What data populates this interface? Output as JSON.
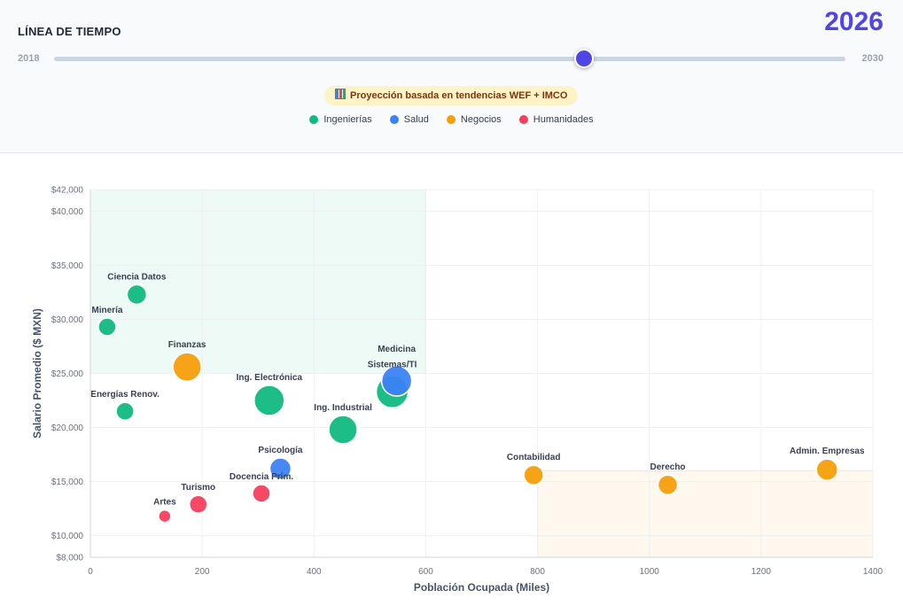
{
  "timeline": {
    "title": "LÍNEA DE TIEMPO",
    "year": "2026",
    "min_label": "2018",
    "max_label": "2030",
    "current_fraction": 0.667
  },
  "badge": {
    "icon": "bar-chart-icon",
    "text": "Proyección basada en tendencias WEF + IMCO"
  },
  "legend": [
    {
      "label": "Ingenierías",
      "color": "#10b981"
    },
    {
      "label": "Salud",
      "color": "#3b82f6"
    },
    {
      "label": "Negocios",
      "color": "#f59e0b"
    },
    {
      "label": "Humanidades",
      "color": "#f43f5e"
    }
  ],
  "chart_data": {
    "type": "scatter",
    "xlabel": "Población Ocupada (Miles)",
    "ylabel": "Salario Promedio ($ MXN)",
    "xlim": [
      0,
      1400
    ],
    "ylim": [
      8000,
      42000
    ],
    "x_ticks": [
      0,
      200,
      400,
      600,
      800,
      1000,
      1200,
      1400
    ],
    "y_ticks": [
      {
        "value": 8000,
        "label": "$8,000"
      },
      {
        "value": 10000,
        "label": "$10,000"
      },
      {
        "value": 15000,
        "label": "$15,000"
      },
      {
        "value": 20000,
        "label": "$20,000"
      },
      {
        "value": 25000,
        "label": "$25,000"
      },
      {
        "value": 30000,
        "label": "$30,000"
      },
      {
        "value": 35000,
        "label": "$35,000"
      },
      {
        "value": 40000,
        "label": "$40,000"
      },
      {
        "value": 42000,
        "label": "$42,000"
      }
    ],
    "grid": true,
    "highlight_regions": [
      {
        "x": [
          0,
          600
        ],
        "y": [
          25000,
          42000
        ],
        "color": "#10b981"
      },
      {
        "x": [
          800,
          1400
        ],
        "y": [
          8000,
          16000
        ],
        "color": "#f59e0b"
      }
    ],
    "points": [
      {
        "label": "Minería",
        "x": 30,
        "y": 29300,
        "size": 10,
        "group": "Ingenierías"
      },
      {
        "label": "Ciencia Datos",
        "x": 83,
        "y": 32300,
        "size": 11,
        "group": "Ingenierías"
      },
      {
        "label": "Energías Renov.",
        "x": 62,
        "y": 21500,
        "size": 10,
        "group": "Ingenierías"
      },
      {
        "label": "Finanzas",
        "x": 173,
        "y": 25600,
        "size": 16,
        "group": "Negocios"
      },
      {
        "label": "Ing. Electrónica",
        "x": 320,
        "y": 22500,
        "size": 17,
        "group": "Ingenierías"
      },
      {
        "label": "Ing. Industrial",
        "x": 452,
        "y": 19800,
        "size": 16,
        "group": "Ingenierías"
      },
      {
        "label": "Medicina",
        "x": 548,
        "y": 24300,
        "size": 17,
        "group": "Salud"
      },
      {
        "label": "Sistemas/TI",
        "x": 540,
        "y": 23300,
        "size": 18,
        "group": "Ingenierías"
      },
      {
        "label": "Psicología",
        "x": 340,
        "y": 16200,
        "size": 12,
        "group": "Salud"
      },
      {
        "label": "Docencia Prim.",
        "x": 306,
        "y": 13900,
        "size": 10,
        "group": "Humanidades"
      },
      {
        "label": "Turismo",
        "x": 193,
        "y": 12900,
        "size": 10,
        "group": "Humanidades"
      },
      {
        "label": "Artes",
        "x": 133,
        "y": 11800,
        "size": 7,
        "group": "Humanidades"
      },
      {
        "label": "Contabilidad",
        "x": 793,
        "y": 15600,
        "size": 11,
        "group": "Negocios"
      },
      {
        "label": "Derecho",
        "x": 1033,
        "y": 14700,
        "size": 11,
        "group": "Negocios"
      },
      {
        "label": "Admin. Empresas",
        "x": 1318,
        "y": 16100,
        "size": 12,
        "group": "Negocios"
      }
    ]
  }
}
